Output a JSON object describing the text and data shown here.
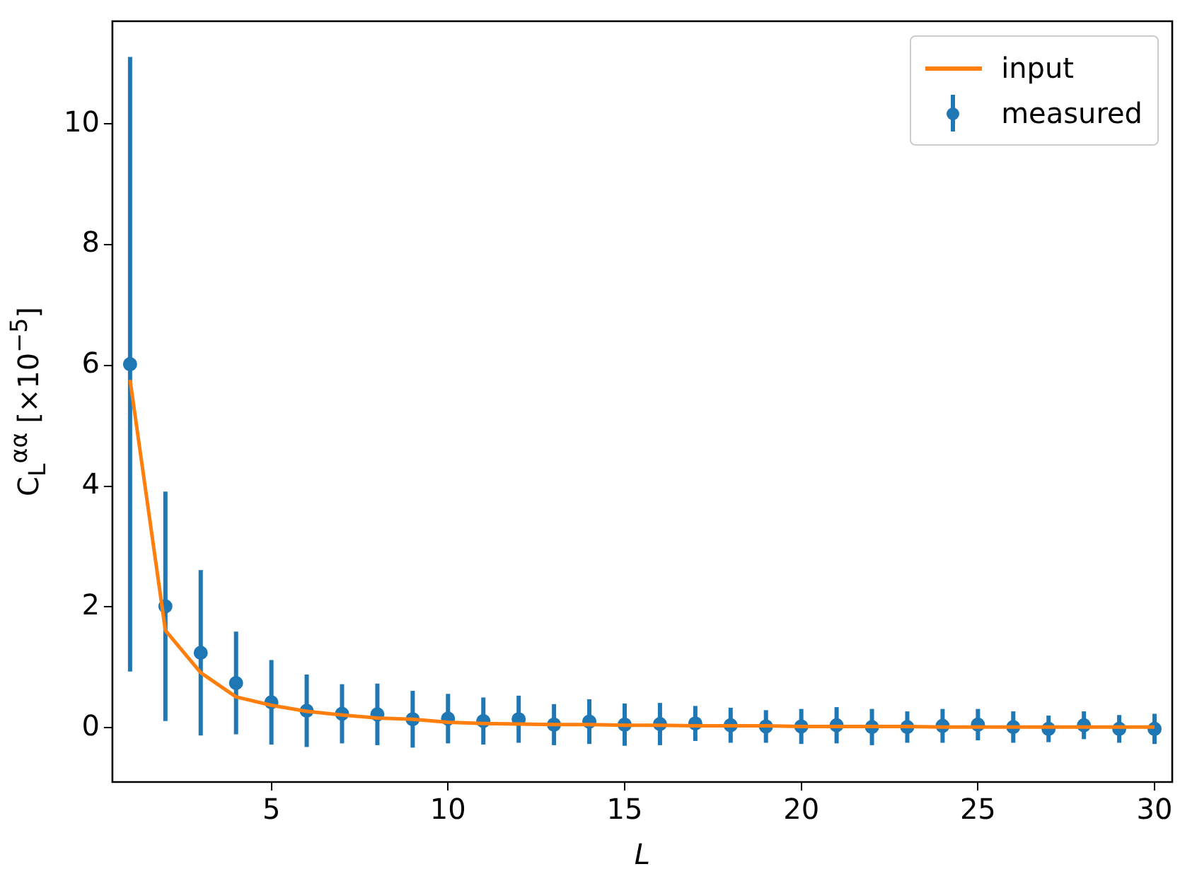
{
  "chart_data": {
    "type": "scatter",
    "xlabel": "L",
    "ylabel": "C$_{L}$$^{αα}$ [×10$^{−5}$]",
    "x": [
      1,
      2,
      3,
      4,
      5,
      6,
      7,
      8,
      9,
      10,
      11,
      12,
      13,
      14,
      15,
      16,
      17,
      18,
      19,
      20,
      21,
      22,
      23,
      24,
      25,
      26,
      27,
      28,
      29,
      30
    ],
    "xlim": [
      0.5,
      30.5
    ],
    "xticks": [
      5,
      10,
      15,
      20,
      25,
      30
    ],
    "ylim": [
      -0.9,
      11.7
    ],
    "yticks": [
      0,
      2,
      4,
      6,
      8,
      10
    ],
    "grid": false,
    "legend": "top right",
    "series": [
      {
        "name": "input",
        "type": "line",
        "color": "#ff7f0e",
        "marker": "none",
        "line_style": "solid",
        "values": [
          5.76,
          1.61,
          0.91,
          0.51,
          0.37,
          0.27,
          0.21,
          0.16,
          0.14,
          0.09,
          0.07,
          0.06,
          0.05,
          0.05,
          0.04,
          0.04,
          0.03,
          0.03,
          0.03,
          0.02,
          0.02,
          0.02,
          0.02,
          0.01,
          0.01,
          0.01,
          0.01,
          0.01,
          0.01,
          0.01
        ]
      },
      {
        "name": "measured",
        "color": "#1f77b4",
        "marker": "circle",
        "values": [
          6.02,
          2.01,
          1.24,
          0.74,
          0.42,
          0.28,
          0.23,
          0.22,
          0.14,
          0.15,
          0.11,
          0.14,
          0.05,
          0.1,
          0.05,
          0.06,
          0.07,
          0.04,
          0.02,
          0.02,
          0.04,
          0.01,
          0.01,
          0.03,
          0.05,
          0.01,
          -0.02,
          0.04,
          -0.02,
          -0.02
        ],
        "errors": [
          5.09,
          1.9,
          1.37,
          0.85,
          0.7,
          0.6,
          0.49,
          0.51,
          0.47,
          0.41,
          0.39,
          0.39,
          0.34,
          0.37,
          0.35,
          0.35,
          0.29,
          0.29,
          0.27,
          0.29,
          0.3,
          0.3,
          0.26,
          0.28,
          0.26,
          0.26,
          0.22,
          0.23,
          0.23,
          0.25
        ]
      }
    ]
  }
}
